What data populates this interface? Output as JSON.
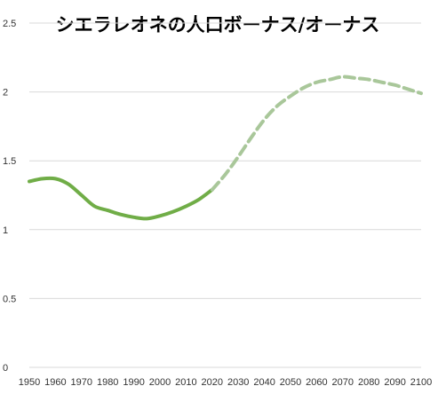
{
  "chart_data": {
    "type": "line",
    "title": "シエラレオネの人口ボーナス/オーナス",
    "xlabel": "",
    "ylabel": "",
    "xlim": [
      1950,
      2100
    ],
    "ylim": [
      0,
      2.5
    ],
    "x_ticks": [
      1950,
      1960,
      1970,
      1980,
      1990,
      2000,
      2010,
      2020,
      2030,
      2040,
      2050,
      2060,
      2070,
      2080,
      2090,
      2100
    ],
    "y_ticks": [
      0,
      0.5,
      1,
      1.5,
      2,
      2.5
    ],
    "grid": "horizontal",
    "legend": "none",
    "series": [
      {
        "style": "solid",
        "color": "#70ad47",
        "x": [
          1950,
          1955,
          1960,
          1965,
          1970,
          1975,
          1980,
          1985,
          1990,
          1995,
          2000,
          2005,
          2010,
          2015,
          2020
        ],
        "y": [
          1.35,
          1.37,
          1.37,
          1.33,
          1.25,
          1.17,
          1.14,
          1.11,
          1.09,
          1.08,
          1.1,
          1.13,
          1.17,
          1.22,
          1.29
        ]
      },
      {
        "style": "dashed",
        "color": "#a9c79a",
        "x": [
          2020,
          2025,
          2030,
          2035,
          2040,
          2045,
          2050,
          2055,
          2060,
          2065,
          2070,
          2075,
          2080,
          2085,
          2090,
          2095,
          2100
        ],
        "y": [
          1.29,
          1.4,
          1.53,
          1.67,
          1.8,
          1.9,
          1.97,
          2.03,
          2.07,
          2.09,
          2.11,
          2.1,
          2.09,
          2.07,
          2.05,
          2.02,
          1.99
        ]
      }
    ]
  }
}
